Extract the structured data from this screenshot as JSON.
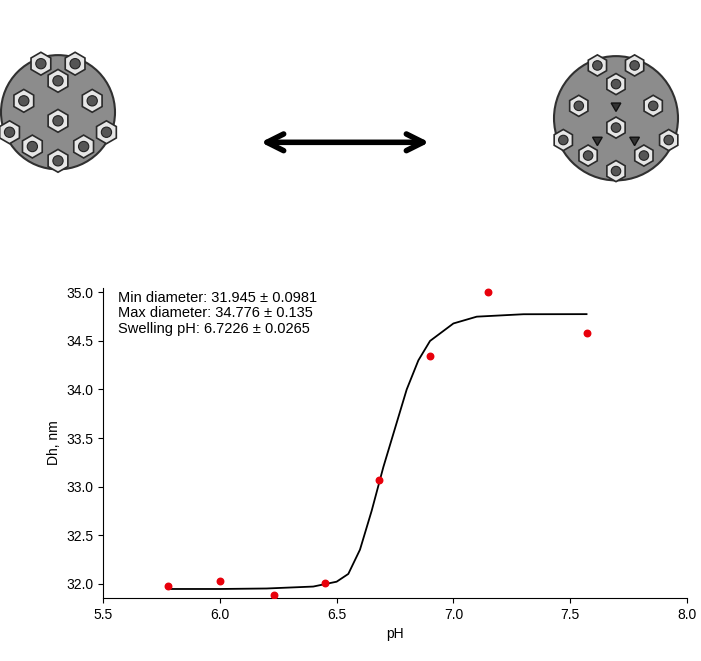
{
  "chart_data": {
    "type": "scatter",
    "annotations": [
      "Min diameter: 31.945 ± 0.0981",
      "Max diameter: 34.776 ± 0.135",
      "Swelling pH: 6.7226 ± 0.0265"
    ],
    "x_label": "pH",
    "y_label": "Dh, nm",
    "series": [
      {
        "type": "scatter",
        "color": "#e8000b",
        "marker": "o",
        "x": [
          5.78,
          6.0,
          6.23,
          6.45,
          6.68,
          6.9,
          7.15,
          7.57
        ],
        "values": [
          31.98,
          32.03,
          31.88,
          32.01,
          33.07,
          34.34,
          35.0,
          34.58
        ]
      },
      {
        "type": "line",
        "color": "#000000",
        "line_style": "solid",
        "x": [
          5.78,
          6.0,
          6.2,
          6.4,
          6.5,
          6.55,
          6.6,
          6.65,
          6.7,
          6.75,
          6.8,
          6.85,
          6.9,
          7.0,
          7.1,
          7.3,
          7.57
        ],
        "values": [
          31.945,
          31.945,
          31.95,
          31.97,
          32.02,
          32.1,
          32.35,
          32.75,
          33.2,
          33.6,
          34.0,
          34.3,
          34.5,
          34.68,
          34.75,
          34.775,
          34.776
        ]
      }
    ],
    "xlim": [
      5.5,
      8.0
    ],
    "xticks": [
      5.5,
      6.0,
      6.5,
      7.0,
      7.5,
      8.0
    ],
    "ylim": [
      31.85,
      35.05
    ],
    "yticks": [
      32.0,
      32.5,
      33.0,
      33.5,
      34.0,
      34.5,
      35.0
    ],
    "grid": false
  }
}
